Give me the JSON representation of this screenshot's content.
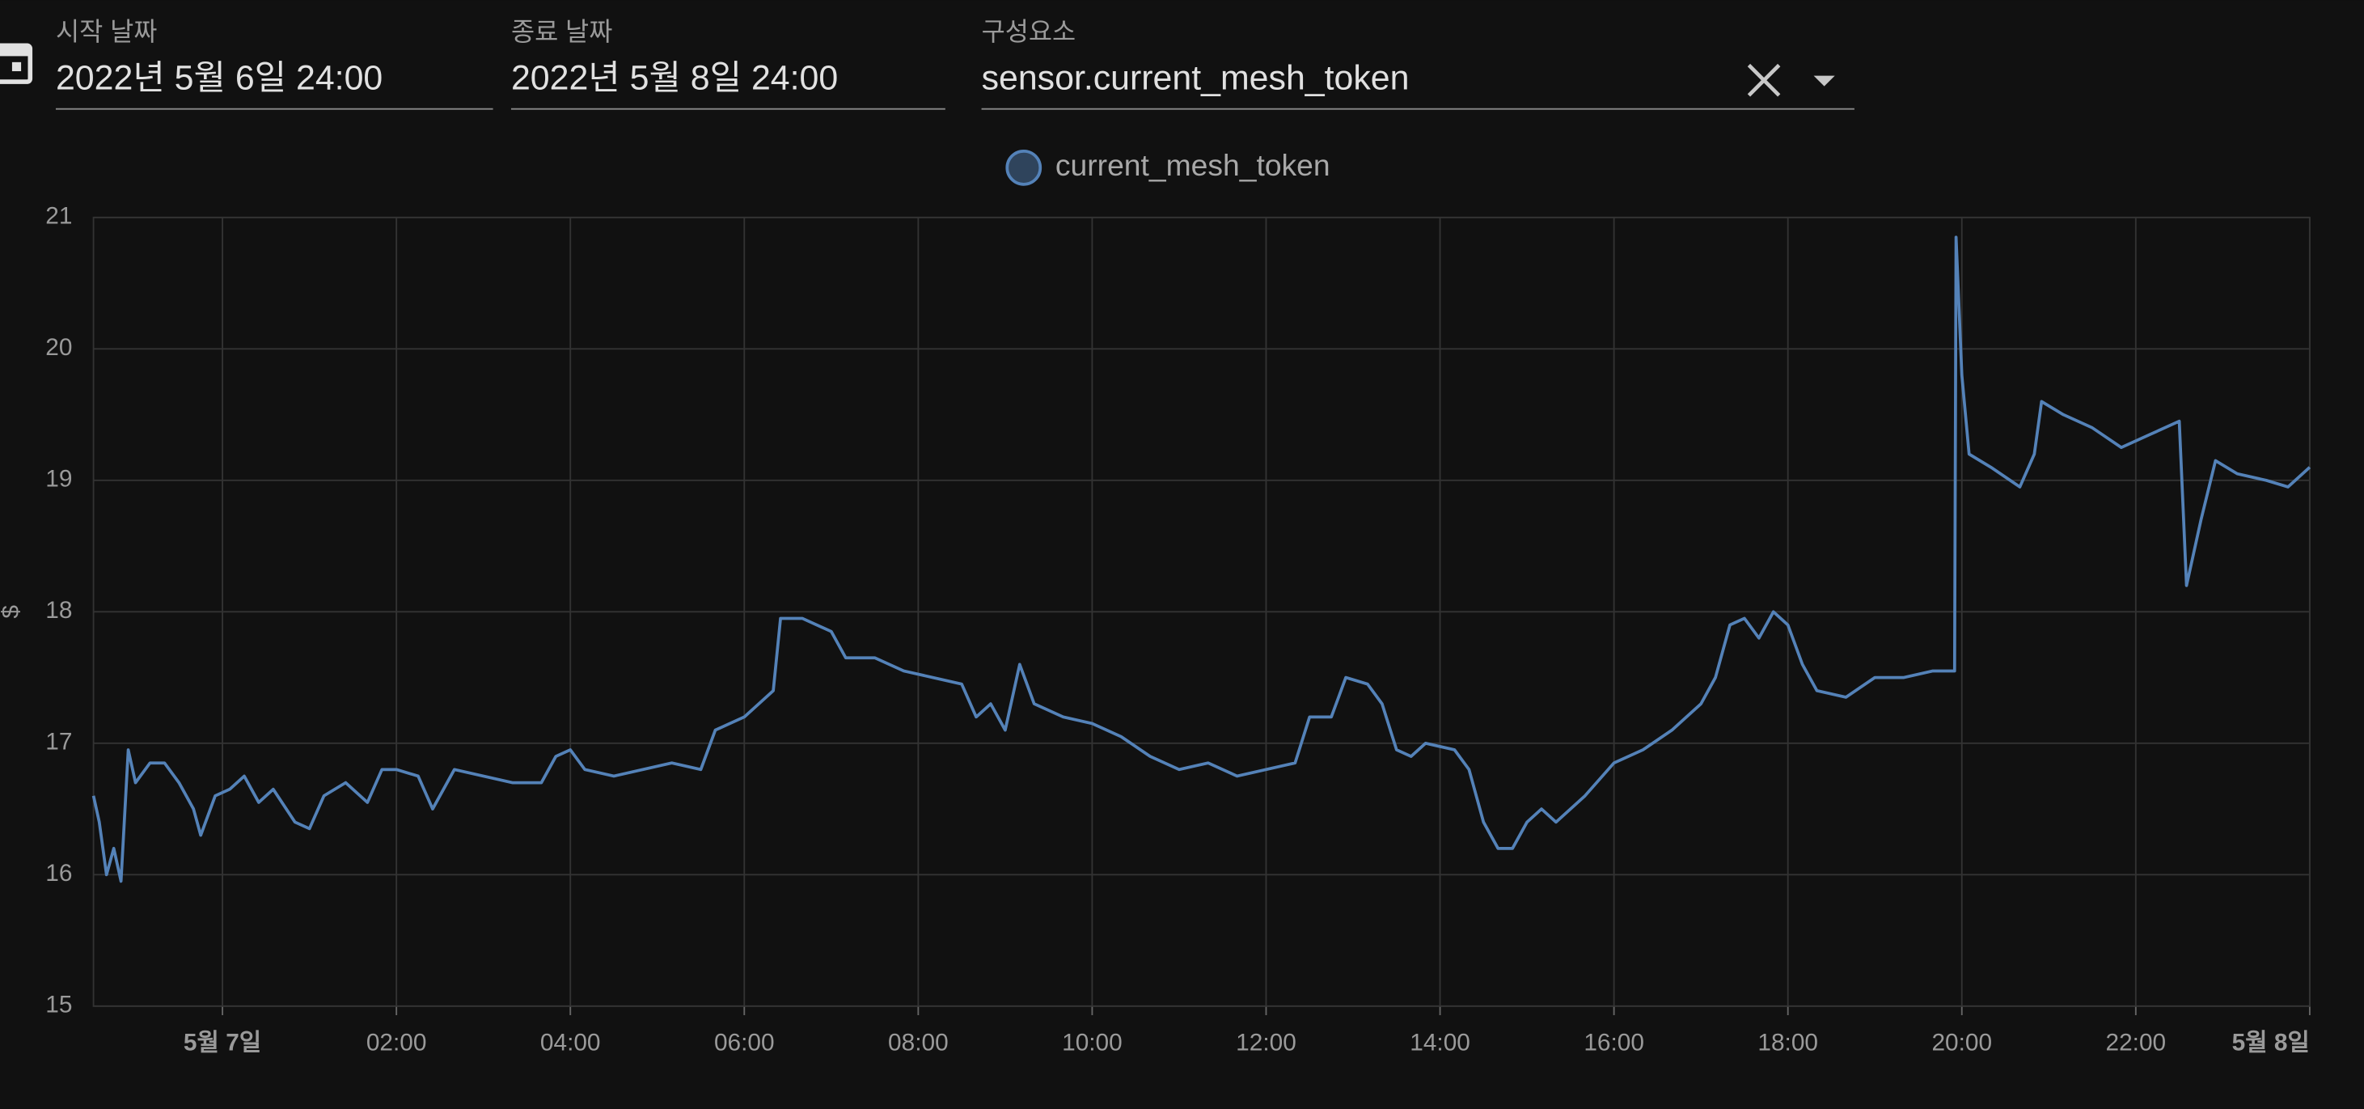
{
  "form": {
    "start_label": "시작 날짜",
    "start_value": "2022년 5월 6일 24:00",
    "end_label": "종료 날짜",
    "end_value": "2022년 5월 8일 24:00",
    "entity_label": "구성요소",
    "entity_value": "sensor.current_mesh_token"
  },
  "chart_data": {
    "type": "line",
    "y_label": "$",
    "xlim": [
      "2022-05-06T22:31",
      "2022-05-08T00:00"
    ],
    "xticks": [
      {
        "value": "2022-05-07T00:00",
        "label": "5월 7일"
      },
      {
        "value": "2022-05-07T02:00",
        "label": "02:00"
      },
      {
        "value": "2022-05-07T04:00",
        "label": "04:00"
      },
      {
        "value": "2022-05-07T06:00",
        "label": "06:00"
      },
      {
        "value": "2022-05-07T08:00",
        "label": "08:00"
      },
      {
        "value": "2022-05-07T10:00",
        "label": "10:00"
      },
      {
        "value": "2022-05-07T12:00",
        "label": "12:00"
      },
      {
        "value": "2022-05-07T14:00",
        "label": "14:00"
      },
      {
        "value": "2022-05-07T16:00",
        "label": "16:00"
      },
      {
        "value": "2022-05-07T18:00",
        "label": "18:00"
      },
      {
        "value": "2022-05-07T20:00",
        "label": "20:00"
      },
      {
        "value": "2022-05-07T22:00",
        "label": "22:00"
      },
      {
        "value": "2022-05-08T00:00",
        "label": "5월 8일"
      }
    ],
    "ylim": [
      15,
      21
    ],
    "yticks": [
      15,
      16,
      17,
      18,
      19,
      20,
      21
    ],
    "grid": true,
    "legend": "top",
    "x": [
      "2022-05-06T22:31",
      "2022-05-06T22:35",
      "2022-05-06T22:40",
      "2022-05-06T22:45",
      "2022-05-06T22:50",
      "2022-05-06T22:55",
      "2022-05-06T23:00",
      "2022-05-06T23:10",
      "2022-05-06T23:20",
      "2022-05-06T23:30",
      "2022-05-06T23:40",
      "2022-05-06T23:45",
      "2022-05-06T23:55",
      "2022-05-07T00:05",
      "2022-05-07T00:15",
      "2022-05-07T00:25",
      "2022-05-07T00:35",
      "2022-05-07T00:50",
      "2022-05-07T01:00",
      "2022-05-07T01:10",
      "2022-05-07T01:25",
      "2022-05-07T01:40",
      "2022-05-07T01:50",
      "2022-05-07T02:00",
      "2022-05-07T02:15",
      "2022-05-07T02:25",
      "2022-05-07T02:40",
      "2022-05-07T03:00",
      "2022-05-07T03:20",
      "2022-05-07T03:40",
      "2022-05-07T03:50",
      "2022-05-07T04:00",
      "2022-05-07T04:10",
      "2022-05-07T04:30",
      "2022-05-07T04:50",
      "2022-05-07T05:10",
      "2022-05-07T05:30",
      "2022-05-07T05:40",
      "2022-05-07T05:50",
      "2022-05-07T06:00",
      "2022-05-07T06:10",
      "2022-05-07T06:20",
      "2022-05-07T06:25",
      "2022-05-07T06:40",
      "2022-05-07T07:00",
      "2022-05-07T07:10",
      "2022-05-07T07:30",
      "2022-05-07T07:50",
      "2022-05-07T08:10",
      "2022-05-07T08:30",
      "2022-05-07T08:40",
      "2022-05-07T08:50",
      "2022-05-07T09:00",
      "2022-05-07T09:10",
      "2022-05-07T09:20",
      "2022-05-07T09:40",
      "2022-05-07T10:00",
      "2022-05-07T10:20",
      "2022-05-07T10:40",
      "2022-05-07T11:00",
      "2022-05-07T11:20",
      "2022-05-07T11:40",
      "2022-05-07T12:00",
      "2022-05-07T12:20",
      "2022-05-07T12:30",
      "2022-05-07T12:45",
      "2022-05-07T12:55",
      "2022-05-07T13:10",
      "2022-05-07T13:20",
      "2022-05-07T13:30",
      "2022-05-07T13:40",
      "2022-05-07T13:50",
      "2022-05-07T14:10",
      "2022-05-07T14:20",
      "2022-05-07T14:30",
      "2022-05-07T14:40",
      "2022-05-07T14:50",
      "2022-05-07T15:00",
      "2022-05-07T15:10",
      "2022-05-07T15:20",
      "2022-05-07T15:40",
      "2022-05-07T16:00",
      "2022-05-07T16:20",
      "2022-05-07T16:40",
      "2022-05-07T17:00",
      "2022-05-07T17:10",
      "2022-05-07T17:20",
      "2022-05-07T17:30",
      "2022-05-07T17:40",
      "2022-05-07T17:50",
      "2022-05-07T18:00",
      "2022-05-07T18:10",
      "2022-05-07T18:20",
      "2022-05-07T18:40",
      "2022-05-07T19:00",
      "2022-05-07T19:20",
      "2022-05-07T19:40",
      "2022-05-07T19:55",
      "2022-05-07T19:56",
      "2022-05-07T20:00",
      "2022-05-07T20:05",
      "2022-05-07T20:20",
      "2022-05-07T20:40",
      "2022-05-07T20:50",
      "2022-05-07T20:55",
      "2022-05-07T21:10",
      "2022-05-07T21:30",
      "2022-05-07T21:50",
      "2022-05-07T22:10",
      "2022-05-07T22:30",
      "2022-05-07T22:35",
      "2022-05-07T22:45",
      "2022-05-07T22:55",
      "2022-05-07T23:10",
      "2022-05-07T23:30",
      "2022-05-07T23:45",
      "2022-05-08T00:00"
    ],
    "series": [
      {
        "name": "current_mesh_token",
        "color": "#5482b8",
        "values": [
          16.6,
          16.4,
          16.0,
          16.2,
          15.95,
          16.95,
          16.7,
          16.85,
          16.85,
          16.7,
          16.5,
          16.3,
          16.6,
          16.65,
          16.75,
          16.55,
          16.65,
          16.4,
          16.35,
          16.6,
          16.7,
          16.55,
          16.8,
          16.8,
          16.75,
          16.5,
          16.8,
          16.75,
          16.7,
          16.7,
          16.9,
          16.95,
          16.8,
          16.75,
          16.8,
          16.85,
          16.8,
          17.1,
          17.15,
          17.2,
          17.3,
          17.4,
          17.95,
          17.95,
          17.85,
          17.65,
          17.65,
          17.55,
          17.5,
          17.45,
          17.2,
          17.3,
          17.1,
          17.6,
          17.3,
          17.2,
          17.15,
          17.05,
          16.9,
          16.8,
          16.85,
          16.75,
          16.8,
          16.85,
          17.2,
          17.2,
          17.5,
          17.45,
          17.3,
          16.95,
          16.9,
          17.0,
          16.95,
          16.8,
          16.4,
          16.2,
          16.2,
          16.4,
          16.5,
          16.4,
          16.6,
          16.85,
          16.95,
          17.1,
          17.3,
          17.5,
          17.9,
          17.95,
          17.8,
          18.0,
          17.9,
          17.6,
          17.4,
          17.35,
          17.5,
          17.5,
          17.55,
          17.55,
          20.85,
          19.8,
          19.2,
          19.1,
          18.95,
          19.2,
          19.6,
          19.5,
          19.4,
          19.25,
          19.35,
          19.45,
          18.2,
          18.7,
          19.15,
          19.05,
          19.0,
          18.95,
          19.1
        ]
      }
    ]
  }
}
